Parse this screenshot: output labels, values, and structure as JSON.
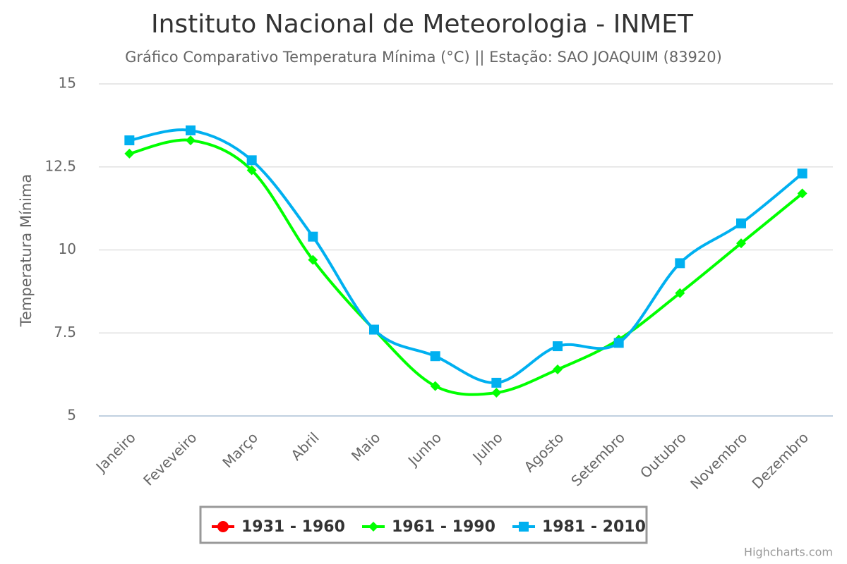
{
  "chart_data": {
    "type": "line",
    "title": "Instituto Nacional de Meteorologia - INMET",
    "subtitle": "Gráfico Comparativo Temperatura Mínima (°C) || Estação: SAO JOAQUIM (83920)",
    "y_label": "Temperatura Mínima",
    "credit": "Highcharts.com",
    "categories": [
      "Janeiro",
      "Feveveiro",
      "Março",
      "Abril",
      "Maio",
      "Junho",
      "Julho",
      "Agosto",
      "Setembro",
      "Outubro",
      "Novembro",
      "Dezembro"
    ],
    "series": [
      {
        "name": "1931 - 1960",
        "color": "#ff0000",
        "marker": "circle",
        "values": [
          null,
          null,
          null,
          null,
          null,
          null,
          null,
          null,
          null,
          null,
          null,
          null
        ]
      },
      {
        "name": "1961 - 1990",
        "color": "#00ff00",
        "marker": "diamond",
        "values": [
          12.9,
          13.3,
          12.4,
          9.7,
          7.6,
          5.9,
          5.7,
          6.4,
          7.3,
          8.7,
          10.2,
          11.7
        ]
      },
      {
        "name": "1981 - 2010",
        "color": "#00b0f0",
        "marker": "square",
        "values": [
          13.3,
          13.6,
          12.7,
          10.4,
          7.6,
          6.8,
          6.0,
          7.1,
          7.2,
          9.6,
          10.8,
          12.3
        ]
      }
    ],
    "ylim": [
      5,
      15
    ],
    "yticks": [
      5,
      7.5,
      10,
      12.5,
      15
    ],
    "grid": true,
    "legend": "bottom"
  }
}
